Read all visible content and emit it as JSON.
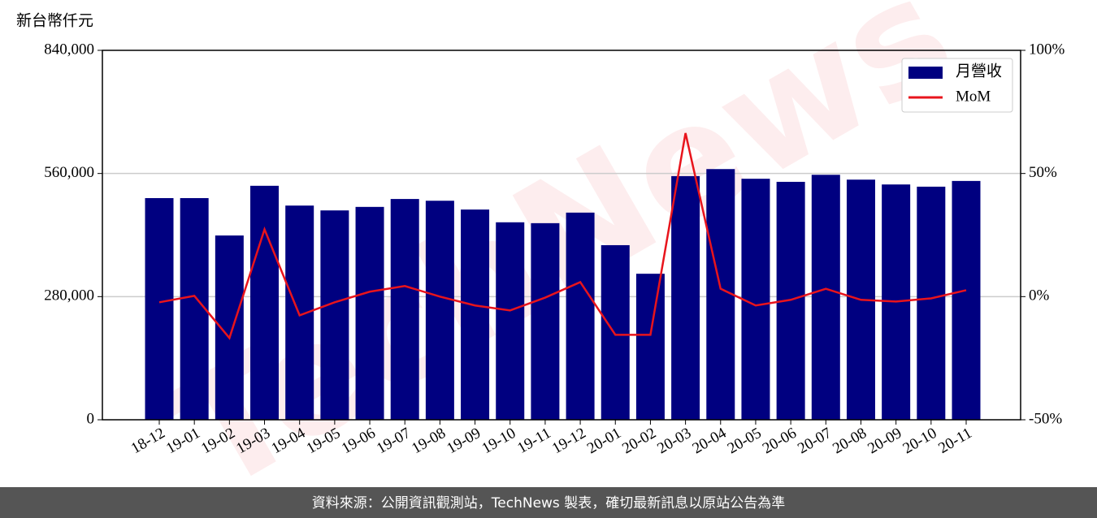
{
  "chart_data": {
    "type": "bar_line",
    "y_axis_label": "新台幣仟元",
    "categories": [
      "18-12",
      "19-01",
      "19-02",
      "19-03",
      "19-04",
      "19-05",
      "19-06",
      "19-07",
      "19-08",
      "19-09",
      "19-10",
      "19-11",
      "19-12",
      "20-01",
      "20-02",
      "20-03",
      "20-04",
      "20-05",
      "20-06",
      "20-07",
      "20-08",
      "20-09",
      "20-10",
      "20-11"
    ],
    "series": [
      {
        "name": "月營收",
        "type": "bar",
        "color": "#000080",
        "values": [
          504000,
          504000,
          419000,
          532000,
          487000,
          476000,
          484000,
          502000,
          498000,
          478000,
          449000,
          447000,
          471000,
          397000,
          332000,
          554000,
          570000,
          548000,
          541000,
          557000,
          546000,
          535000,
          530000,
          543000
        ]
      },
      {
        "name": "MoM",
        "type": "line",
        "axis": "y2",
        "color": "#e8141c",
        "values": [
          -2.3,
          0.3,
          -16.8,
          27.3,
          -7.6,
          -2.3,
          2.0,
          4.3,
          0.0,
          -3.6,
          -5.6,
          -0.4,
          5.9,
          -15.5,
          -15.5,
          66.4,
          3.2,
          -3.6,
          -1.3,
          3.2,
          -1.3,
          -2.0,
          -0.7,
          2.6
        ]
      }
    ],
    "ylim": [
      0,
      840000
    ],
    "yticks": [
      0,
      {
        "value": 280000,
        "label": "280,000"
      },
      {
        "value": 560000,
        "label": "560,000"
      },
      {
        "value": 840000,
        "label": "840,000"
      }
    ],
    "y2lim": [
      -50,
      100
    ],
    "y2ticks": [
      {
        "value": -50,
        "label": "-50%"
      },
      {
        "value": 0,
        "label": "0%"
      },
      {
        "value": 50,
        "label": "50%"
      },
      {
        "value": 100,
        "label": "100%"
      }
    ],
    "grid": true,
    "legend": "upper right",
    "watermark": "TechNews",
    "footer": "資料來源：公開資訊觀測站，TechNews 製表，確切最新訊息以原站公告為準"
  }
}
